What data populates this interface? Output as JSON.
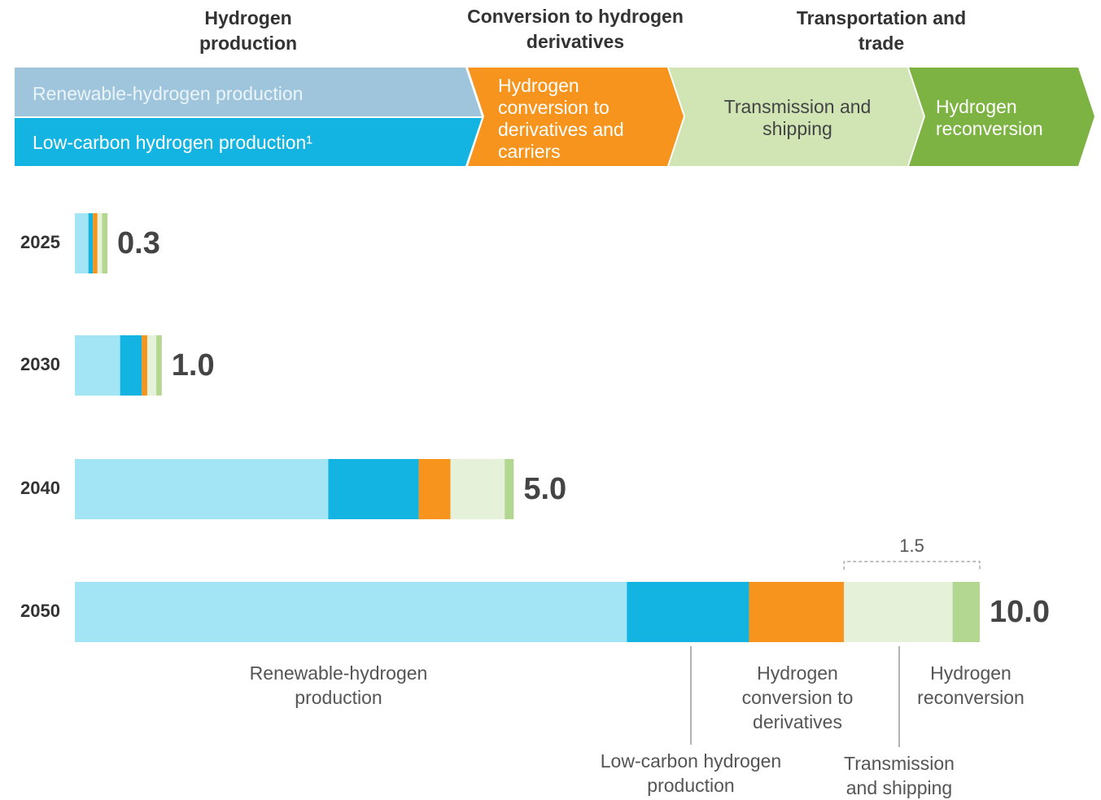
{
  "header": {
    "stages": [
      "Hydrogen production",
      "Conversion to hydrogen derivatives",
      "Transportation and trade"
    ],
    "steps": [
      "Renewable-hydrogen production",
      "Low-carbon hydrogen production¹",
      "Hydrogen conversion to derivatives and carriers",
      "Transmission and shipping",
      "Hydrogen reconversion"
    ]
  },
  "chart_data": {
    "type": "bar",
    "orientation": "horizontal",
    "stacked": true,
    "categories": [
      "2025",
      "2030",
      "2040",
      "2050"
    ],
    "series": [
      {
        "name": "Renewable-hydrogen production",
        "color": "#a3e4f5",
        "values": [
          0.15,
          0.5,
          2.8,
          6.1
        ]
      },
      {
        "name": "Low-carbon hydrogen production",
        "color": "#13b4e2",
        "values": [
          0.05,
          0.24,
          1.0,
          1.35
        ]
      },
      {
        "name": "Hydrogen conversion to derivatives",
        "color": "#f7941d",
        "values": [
          0.05,
          0.06,
          0.35,
          1.05
        ]
      },
      {
        "name": "Transmission and shipping",
        "color": "#e6f1da",
        "values": [
          0.05,
          0.1,
          0.6,
          1.2
        ]
      },
      {
        "name": "Hydrogen reconversion",
        "color": "#b3d691",
        "values": [
          0.06,
          0.06,
          0.1,
          0.3
        ]
      }
    ],
    "totals": {
      "values": [
        0.3,
        1.0,
        5.0,
        10.0
      ],
      "value_labels": [
        "0.3",
        "1.0",
        "5.0",
        "10.0"
      ]
    },
    "bracket": {
      "value": 1.5
    }
  }
}
